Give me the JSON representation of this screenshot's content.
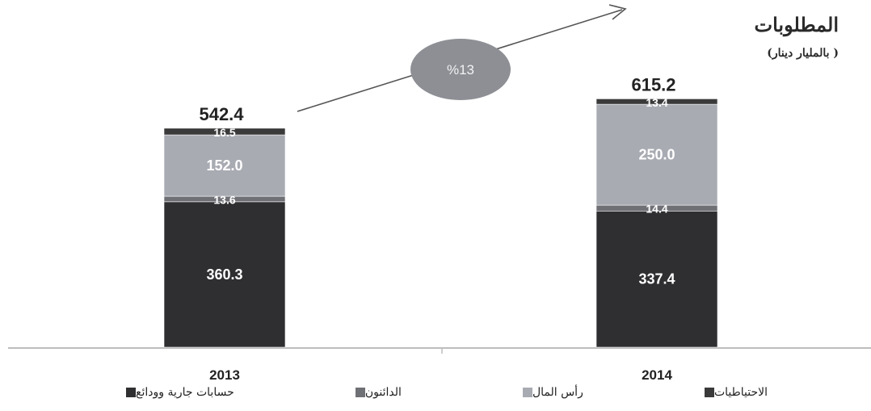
{
  "title": "المطلوبات",
  "subtitle": "( بالمليار دينار)",
  "growth_label": "%13",
  "colors": {
    "reserves": "#3a3a3a",
    "capital": "#a9abb3",
    "creditors": "#6f7075",
    "current_accounts": "#2f2f32",
    "ellipse": "#8d8f95",
    "arrow": "#555555"
  },
  "legend": [
    {
      "label": "الاحتياطيات",
      "key": "reserves"
    },
    {
      "label": "رأس المال",
      "key": "capital"
    },
    {
      "label": "الدائنون",
      "key": "creditors"
    },
    {
      "label": "حسابات جارية وودائع",
      "key": "current_accounts"
    }
  ],
  "chart_data": {
    "type": "bar",
    "stacked": true,
    "categories": [
      "2013",
      "2014"
    ],
    "totals": [
      "542.4",
      "615.2"
    ],
    "series": [
      {
        "name": "حسابات جارية وودائع",
        "values": [
          360.3,
          337.4
        ],
        "labels": [
          "360.3",
          "337.4"
        ],
        "color": "#2f2f32"
      },
      {
        "name": "الدائنون",
        "values": [
          13.6,
          14.4
        ],
        "labels": [
          "13.6",
          "14.4"
        ],
        "color": "#6f7075"
      },
      {
        "name": "رأس المال",
        "values": [
          152.0,
          250.0
        ],
        "labels": [
          "152.0",
          "250.0"
        ],
        "color": "#a9abb3"
      },
      {
        "name": "الاحتياطيات",
        "values": [
          16.5,
          13.4
        ],
        "labels": [
          "16.5",
          "13.4"
        ],
        "color": "#3a3a3a"
      }
    ],
    "title": "المطلوبات",
    "ylabel": "( بالمليار دينار)",
    "grid": false,
    "legend_position": "bottom"
  }
}
